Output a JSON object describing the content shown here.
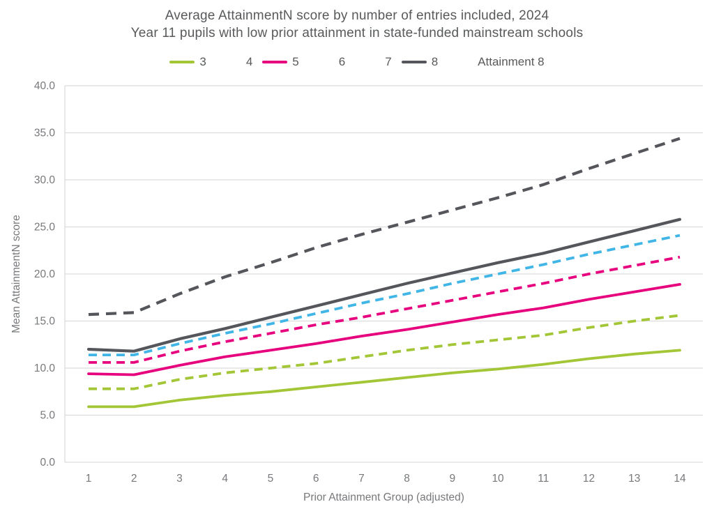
{
  "title": {
    "line1": "Average AttainmentN score by number of entries included, 2024",
    "line2": "Year 11 pupils with low prior attainment in state-funded mainstream schools"
  },
  "colors": {
    "green": "#a3c636",
    "pink": "#e6007e",
    "blue": "#41b6e6",
    "dark_gray": "#54565b",
    "gridline": "#dcdcdc",
    "tick_label": "#77787b",
    "title_text": "#58595b"
  },
  "chart_data": {
    "type": "line",
    "title": "Average AttainmentN score by number of entries included, 2024",
    "subtitle": "Year 11 pupils with low prior attainment in state-funded mainstream schools",
    "xlabel": "Prior Attainment Group (adjusted)",
    "ylabel": "Mean AttainmentN score",
    "x": [
      1,
      2,
      3,
      4,
      5,
      6,
      7,
      8,
      9,
      10,
      11,
      12,
      13,
      14
    ],
    "x_tick_labels": [
      "1",
      "2",
      "3",
      "4",
      "5",
      "6",
      "7",
      "8",
      "9",
      "10",
      "11",
      "12",
      "13",
      "14"
    ],
    "ylim": [
      0,
      40
    ],
    "y_tick_step": 5,
    "y_tick_labels": [
      "0.0",
      "5.0",
      "10.0",
      "15.0",
      "20.0",
      "25.0",
      "30.0",
      "35.0",
      "40.0"
    ],
    "grid": "horizontal",
    "legend_position": "top",
    "series": [
      {
        "name": "3",
        "color": "#a3c636",
        "dashed": false,
        "values": [
          5.9,
          5.9,
          6.6,
          7.1,
          7.5,
          8.0,
          8.5,
          9.0,
          9.5,
          9.9,
          10.4,
          11.0,
          11.5,
          11.9
        ]
      },
      {
        "name": "4",
        "color": "#a3c636",
        "dashed": true,
        "values": [
          7.8,
          7.8,
          8.8,
          9.5,
          10.0,
          10.5,
          11.2,
          11.9,
          12.5,
          13.0,
          13.5,
          14.3,
          15.0,
          15.6
        ]
      },
      {
        "name": "5",
        "color": "#e6007e",
        "dashed": false,
        "values": [
          9.4,
          9.3,
          10.3,
          11.2,
          11.9,
          12.6,
          13.4,
          14.1,
          14.9,
          15.7,
          16.4,
          17.3,
          18.1,
          18.9
        ]
      },
      {
        "name": "6",
        "color": "#e6007e",
        "dashed": true,
        "values": [
          10.6,
          10.6,
          11.8,
          12.8,
          13.7,
          14.6,
          15.4,
          16.3,
          17.2,
          18.1,
          19.0,
          20.0,
          20.9,
          21.8
        ]
      },
      {
        "name": "7",
        "color": "#41b6e6",
        "dashed": true,
        "values": [
          11.4,
          11.4,
          12.6,
          13.7,
          14.7,
          15.8,
          16.9,
          17.9,
          19.0,
          20.0,
          21.0,
          22.1,
          23.1,
          24.1
        ]
      },
      {
        "name": "8",
        "color": "#54565b",
        "dashed": false,
        "values": [
          12.0,
          11.8,
          13.1,
          14.2,
          15.4,
          16.6,
          17.8,
          19.0,
          20.1,
          21.2,
          22.2,
          23.4,
          24.6,
          25.8
        ]
      },
      {
        "name": "Attainment 8",
        "color": "#54565b",
        "dashed": true,
        "values": [
          15.7,
          15.9,
          17.9,
          19.7,
          21.2,
          22.8,
          24.2,
          25.5,
          26.8,
          28.1,
          29.5,
          31.2,
          32.8,
          34.4
        ]
      }
    ]
  }
}
